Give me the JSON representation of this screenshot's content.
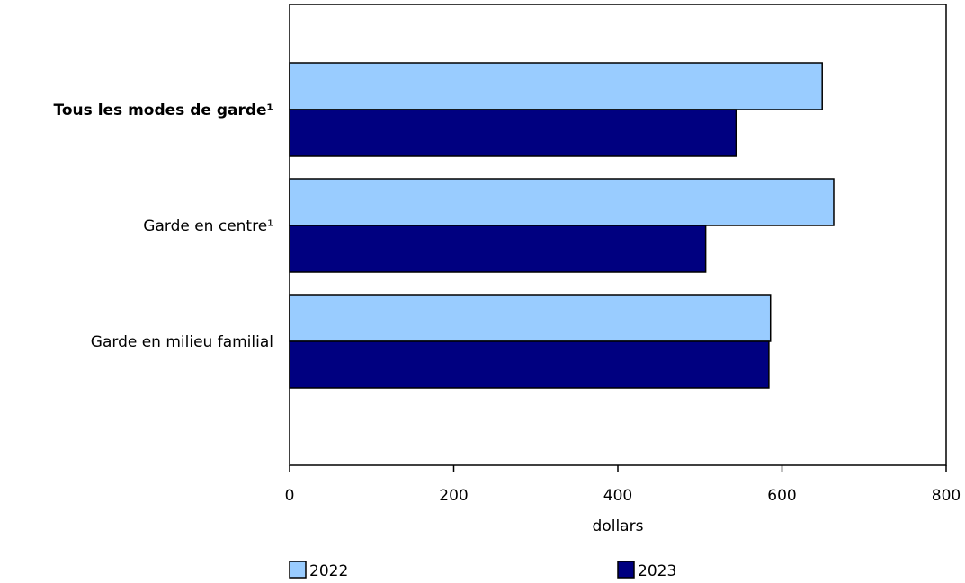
{
  "chart_data": {
    "type": "bar",
    "orientation": "horizontal",
    "categories": [
      "Tous les modes de garde¹",
      "Garde en centre¹",
      "Garde en milieu familial"
    ],
    "category_bold": [
      true,
      false,
      false
    ],
    "series": [
      {
        "name": "2022",
        "values": [
          649,
          663,
          586
        ],
        "color": "#99ccff"
      },
      {
        "name": "2023",
        "values": [
          544,
          507,
          584
        ],
        "color": "#000080"
      }
    ],
    "xlabel": "dollars",
    "ylabel": "",
    "xlim": [
      0,
      800
    ],
    "xticks": [
      0,
      200,
      400,
      600,
      800
    ],
    "grid": false,
    "legend": "bottom"
  }
}
